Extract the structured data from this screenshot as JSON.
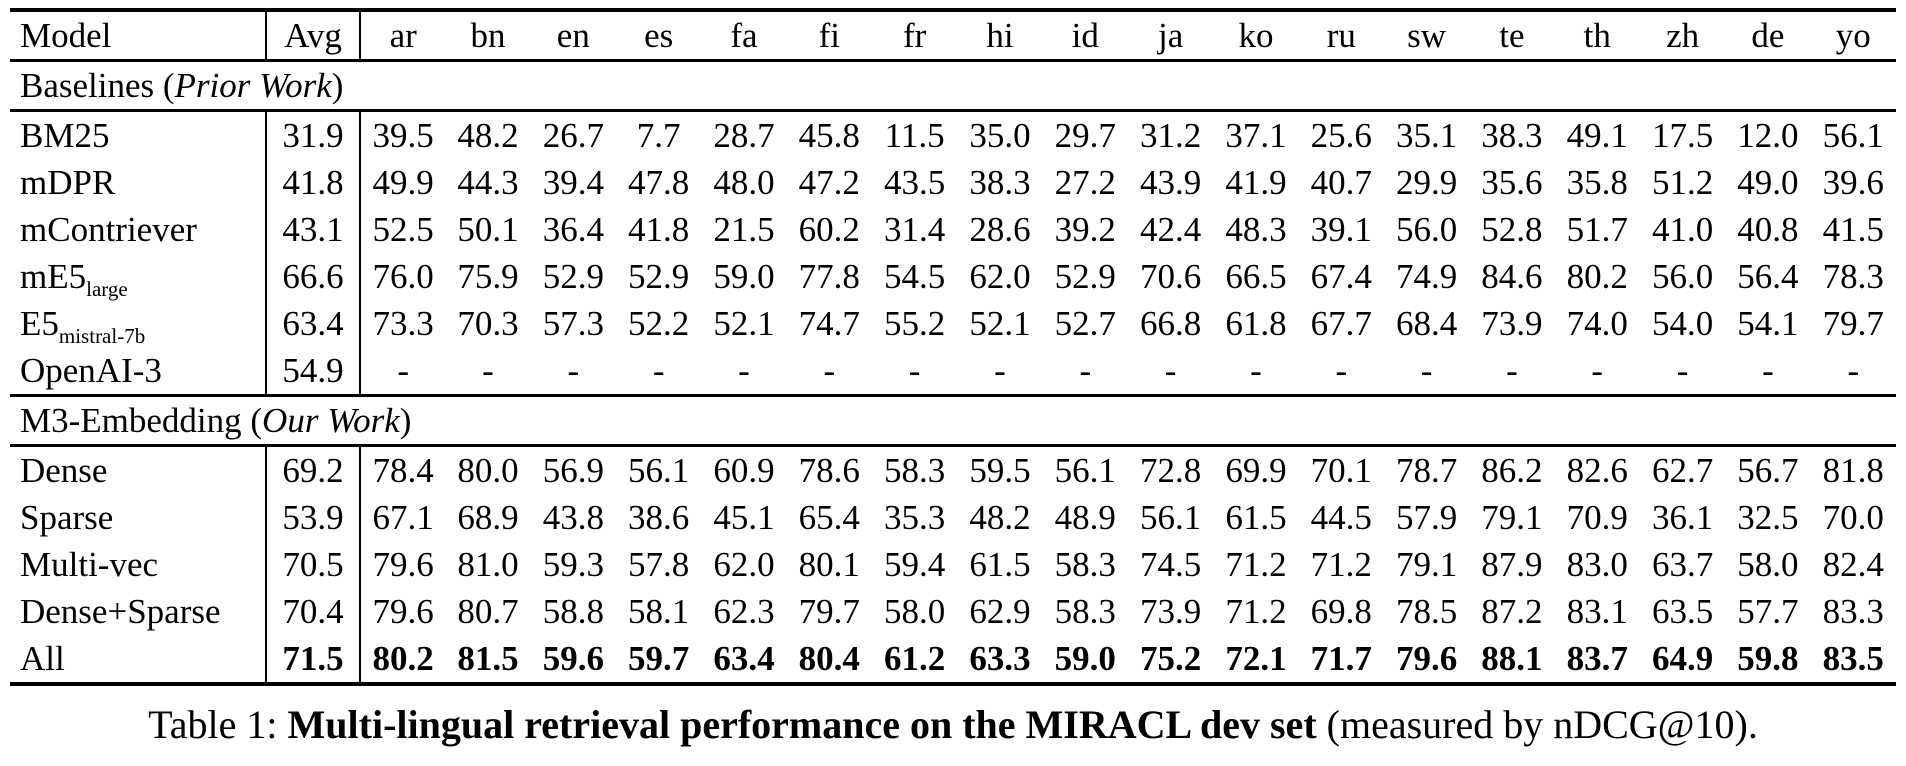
{
  "table": {
    "columns": {
      "model": "Model",
      "avg": "Avg",
      "languages": [
        "ar",
        "bn",
        "en",
        "es",
        "fa",
        "fi",
        "fr",
        "hi",
        "id",
        "ja",
        "ko",
        "ru",
        "sw",
        "te",
        "th",
        "zh",
        "de",
        "yo"
      ]
    },
    "sections": [
      {
        "title": {
          "prefix": "Baselines (",
          "italic": "Prior Work",
          "suffix": ")"
        },
        "rows": [
          {
            "model": "BM25",
            "sub": "",
            "avg": "31.9",
            "bold": false,
            "values": [
              "39.5",
              "48.2",
              "26.7",
              "7.7",
              "28.7",
              "45.8",
              "11.5",
              "35.0",
              "29.7",
              "31.2",
              "37.1",
              "25.6",
              "35.1",
              "38.3",
              "49.1",
              "17.5",
              "12.0",
              "56.1"
            ]
          },
          {
            "model": "mDPR",
            "sub": "",
            "avg": "41.8",
            "bold": false,
            "values": [
              "49.9",
              "44.3",
              "39.4",
              "47.8",
              "48.0",
              "47.2",
              "43.5",
              "38.3",
              "27.2",
              "43.9",
              "41.9",
              "40.7",
              "29.9",
              "35.6",
              "35.8",
              "51.2",
              "49.0",
              "39.6"
            ]
          },
          {
            "model": "mContriever",
            "sub": "",
            "avg": "43.1",
            "bold": false,
            "values": [
              "52.5",
              "50.1",
              "36.4",
              "41.8",
              "21.5",
              "60.2",
              "31.4",
              "28.6",
              "39.2",
              "42.4",
              "48.3",
              "39.1",
              "56.0",
              "52.8",
              "51.7",
              "41.0",
              "40.8",
              "41.5"
            ]
          },
          {
            "model": "mE5",
            "sub": "large",
            "avg": "66.6",
            "bold": false,
            "values": [
              "76.0",
              "75.9",
              "52.9",
              "52.9",
              "59.0",
              "77.8",
              "54.5",
              "62.0",
              "52.9",
              "70.6",
              "66.5",
              "67.4",
              "74.9",
              "84.6",
              "80.2",
              "56.0",
              "56.4",
              "78.3"
            ]
          },
          {
            "model": "E5",
            "sub": "mistral-7b",
            "avg": "63.4",
            "bold": false,
            "values": [
              "73.3",
              "70.3",
              "57.3",
              "52.2",
              "52.1",
              "74.7",
              "55.2",
              "52.1",
              "52.7",
              "66.8",
              "61.8",
              "67.7",
              "68.4",
              "73.9",
              "74.0",
              "54.0",
              "54.1",
              "79.7"
            ]
          },
          {
            "model": "OpenAI-3",
            "sub": "",
            "avg": "54.9",
            "bold": false,
            "values": [
              "-",
              "-",
              "-",
              "-",
              "-",
              "-",
              "-",
              "-",
              "-",
              "-",
              "-",
              "-",
              "-",
              "-",
              "-",
              "-",
              "-",
              "-"
            ]
          }
        ]
      },
      {
        "title": {
          "prefix": "M3-Embedding (",
          "italic": "Our Work",
          "suffix": ")"
        },
        "rows": [
          {
            "model": "Dense",
            "sub": "",
            "avg": "69.2",
            "bold": false,
            "values": [
              "78.4",
              "80.0",
              "56.9",
              "56.1",
              "60.9",
              "78.6",
              "58.3",
              "59.5",
              "56.1",
              "72.8",
              "69.9",
              "70.1",
              "78.7",
              "86.2",
              "82.6",
              "62.7",
              "56.7",
              "81.8"
            ]
          },
          {
            "model": "Sparse",
            "sub": "",
            "avg": "53.9",
            "bold": false,
            "values": [
              "67.1",
              "68.9",
              "43.8",
              "38.6",
              "45.1",
              "65.4",
              "35.3",
              "48.2",
              "48.9",
              "56.1",
              "61.5",
              "44.5",
              "57.9",
              "79.1",
              "70.9",
              "36.1",
              "32.5",
              "70.0"
            ]
          },
          {
            "model": "Multi-vec",
            "sub": "",
            "avg": "70.5",
            "bold": false,
            "values": [
              "79.6",
              "81.0",
              "59.3",
              "57.8",
              "62.0",
              "80.1",
              "59.4",
              "61.5",
              "58.3",
              "74.5",
              "71.2",
              "71.2",
              "79.1",
              "87.9",
              "83.0",
              "63.7",
              "58.0",
              "82.4"
            ]
          },
          {
            "model": "Dense+Sparse",
            "sub": "",
            "avg": "70.4",
            "bold": false,
            "values": [
              "79.6",
              "80.7",
              "58.8",
              "58.1",
              "62.3",
              "79.7",
              "58.0",
              "62.9",
              "58.3",
              "73.9",
              "71.2",
              "69.8",
              "78.5",
              "87.2",
              "83.1",
              "63.5",
              "57.7",
              "83.3"
            ]
          },
          {
            "model": "All",
            "sub": "",
            "avg": "71.5",
            "bold": true,
            "values": [
              "80.2",
              "81.5",
              "59.6",
              "59.7",
              "63.4",
              "80.4",
              "61.2",
              "63.3",
              "59.0",
              "75.2",
              "72.1",
              "71.7",
              "79.6",
              "88.1",
              "83.7",
              "64.9",
              "59.8",
              "83.5"
            ]
          }
        ]
      }
    ]
  },
  "caption": {
    "prefix": "Table 1: ",
    "bold": "Multi-lingual retrieval performance on the MIRACL dev set",
    "suffix": " (measured by nDCG@10)."
  }
}
